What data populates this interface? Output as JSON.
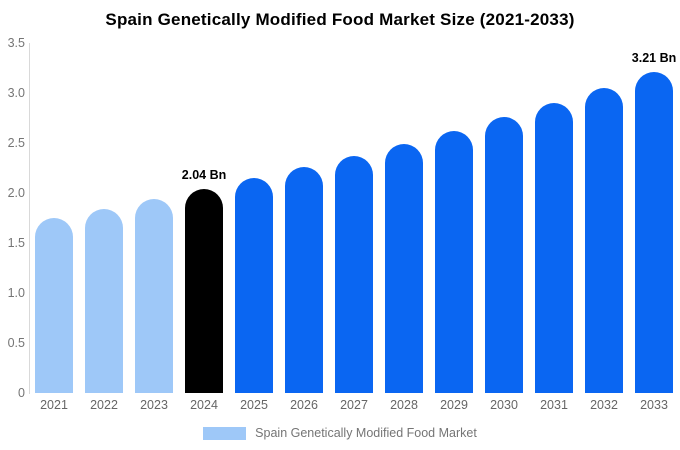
{
  "title": "Spain Genetically Modified Food Market Size (2021-2033)",
  "legend": {
    "label": "Spain Genetically Modified Food Market"
  },
  "colors": {
    "past_bar": "#9EC8F8",
    "current_bar": "#000000",
    "forecast_bar": "#0A66F2",
    "axis_line": "#D9D9D9",
    "tick_text": "#757575",
    "x_label_text": "#666666",
    "value_label_text": "#000000",
    "background": "#FFFFFF"
  },
  "chart_data": {
    "type": "bar",
    "title": "Spain Genetically Modified Food Market Size (2021-2033)",
    "categories": [
      "2021",
      "2022",
      "2023",
      "2024",
      "2025",
      "2026",
      "2027",
      "2028",
      "2029",
      "2030",
      "2031",
      "2032",
      "2033"
    ],
    "values": [
      1.75,
      1.84,
      1.94,
      2.04,
      2.15,
      2.26,
      2.37,
      2.49,
      2.62,
      2.76,
      2.9,
      3.05,
      3.21
    ],
    "unit": "Bn",
    "color_key": [
      "past",
      "past",
      "past",
      "current",
      "forecast",
      "forecast",
      "forecast",
      "forecast",
      "forecast",
      "forecast",
      "forecast",
      "forecast",
      "forecast"
    ],
    "xlabel": "",
    "ylabel": "",
    "ylim": [
      0,
      3.5
    ],
    "ytick_labels": [
      "3.5",
      "3.0",
      "2.5",
      "2.0",
      "1.5",
      "1.0",
      "0.5",
      "0"
    ],
    "ytick_values": [
      3.5,
      3.0,
      2.5,
      2.0,
      1.5,
      1.0,
      0.5,
      0
    ],
    "grid": false,
    "legend_position": "bottom",
    "annotations": [
      {
        "category": "2024",
        "text": "2.04 Bn"
      },
      {
        "category": "2033",
        "text": "3.21 Bn"
      }
    ]
  }
}
